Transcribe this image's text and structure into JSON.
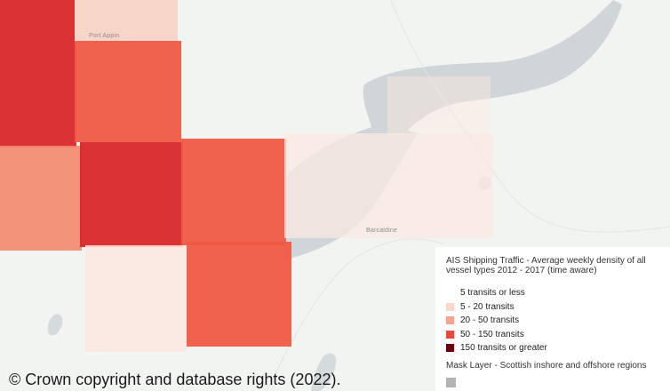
{
  "map": {
    "place_labels": [
      "Port Appin",
      "Barcaldine"
    ],
    "colors": {
      "land": "#f2f4f2",
      "water": "#cfd5d9",
      "class_1": "#fbe8e1",
      "class_2": "#f9c9b8",
      "class_3": "#f3896d",
      "class_4": "#ef5a45",
      "class_5": "#d9272a"
    }
  },
  "legend": {
    "title": "AIS Shipping Traffic - Average weekly density of all vessel types 2012 - 2017 (time aware)",
    "items": [
      {
        "label": "5 transits or less",
        "color": "#ffffff"
      },
      {
        "label": "5 - 20 transits",
        "color": "#fbd8cc"
      },
      {
        "label": "20 - 50 transits",
        "color": "#f5a58d"
      },
      {
        "label": "50 - 150 transits",
        "color": "#e34a3c"
      },
      {
        "label": "150 transits or greater",
        "color": "#6b0010"
      }
    ],
    "mask_title": "Mask Layer - Scottish inshore and offshore regions",
    "mask_color": "#b3b3b3"
  },
  "attribution": "© Crown copyright and database rights (2022)."
}
